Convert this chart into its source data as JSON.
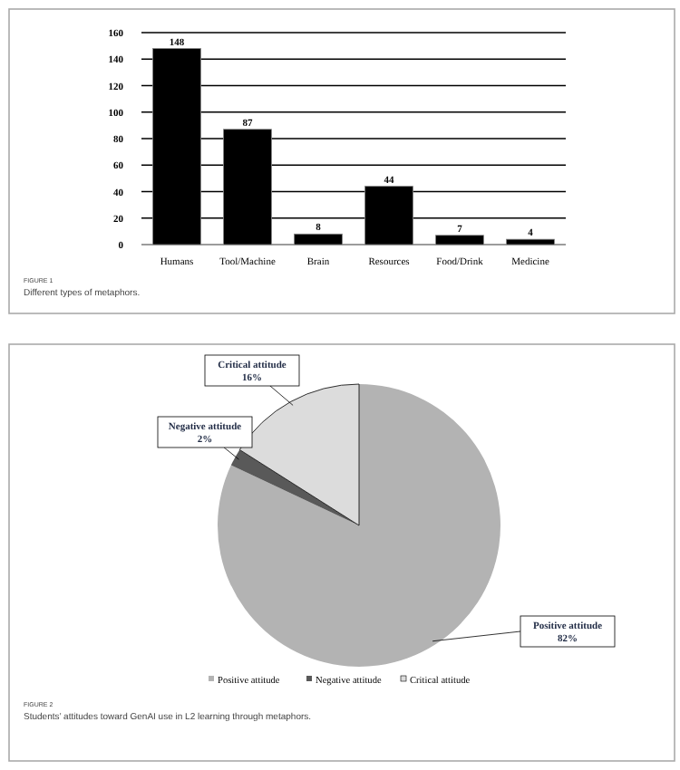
{
  "chart_data": [
    {
      "type": "bar",
      "categories": [
        "Humans",
        "Tool/Machine",
        "Brain",
        "Resources",
        "Food/Drink",
        "Medicine"
      ],
      "values": [
        148,
        87,
        8,
        44,
        7,
        4
      ],
      "color": "#000000",
      "ylim": [
        0,
        160
      ],
      "yticks": [
        0,
        20,
        40,
        60,
        80,
        100,
        120,
        140,
        160
      ],
      "grid": "y",
      "data_labels": true,
      "annotations": [
        "FIGURE 1",
        "Different types of metaphors."
      ]
    },
    {
      "type": "pie",
      "categories": [
        "Positive attitude",
        "Negative attitude",
        "Critical attitude"
      ],
      "values": [
        82,
        2,
        16
      ],
      "colors": [
        "#b3b3b3",
        "#595959",
        "#dcdcdc"
      ],
      "value_labels": [
        "82%",
        "2%",
        "16%"
      ],
      "legend": "bottom",
      "annotations": [
        "FIGURE 2",
        "Students’ attitudes toward GenAI use in L2 learning through metaphors."
      ]
    }
  ]
}
